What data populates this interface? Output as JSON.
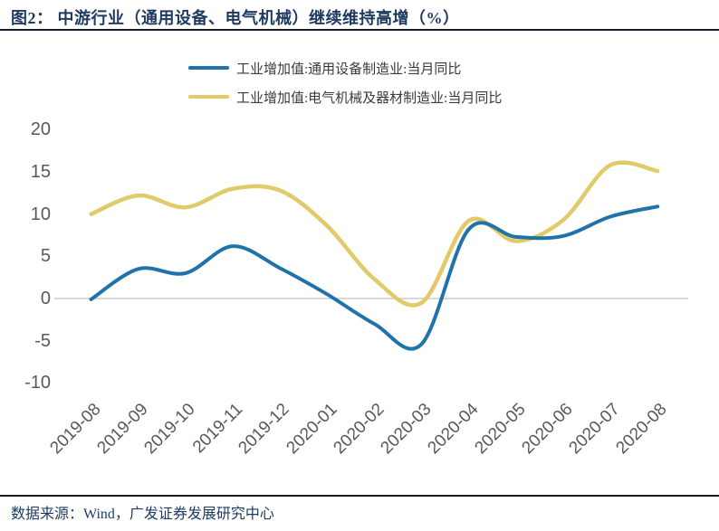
{
  "header": {
    "title": "图2：  中游行业（通用设备、电气机械）继续维持高增（%）"
  },
  "footer": {
    "source": "数据来源：Wind，广发证券发展研究中心"
  },
  "colors": {
    "series_blue": "#2072A8",
    "series_yellow": "#E1CA69",
    "axis_text": "#595959",
    "zero_gridline": "#D9D9D9",
    "title_text": "#1E3A5F",
    "divider": "#131C2B"
  },
  "chart_data": {
    "type": "line",
    "title": "中游行业（通用设备、电气机械）继续维持高增（%）",
    "categories": [
      "2019-08",
      "2019-09",
      "2019-10",
      "2019-11",
      "2019-12",
      "2020-01",
      "2020-02",
      "2020-03",
      "2020-04",
      "2020-05",
      "2020-06",
      "2020-07",
      "2020-08"
    ],
    "series": [
      {
        "name": "工业增加值:通用设备制造业:当月同比",
        "color": "#2072A8",
        "values": [
          -0.1,
          3.5,
          3.0,
          6.2,
          3.6,
          0.5,
          -3.0,
          -5.4,
          8.2,
          7.3,
          7.4,
          9.7,
          10.9
        ]
      },
      {
        "name": "工业增加值:电气机械及器材制造业:当月同比",
        "color": "#E1CA69",
        "values": [
          10.0,
          12.2,
          10.8,
          13.0,
          12.8,
          8.6,
          2.3,
          -0.5,
          9.2,
          6.8,
          9.3,
          15.8,
          15.1
        ]
      }
    ],
    "xlabel": "",
    "ylabel": "",
    "yticks": [
      20,
      15,
      10,
      5,
      0,
      -5,
      -10
    ],
    "ylim": [
      -10,
      20
    ],
    "grid": "zero-line-only",
    "legend_position": "top",
    "line_smoothing": true
  }
}
